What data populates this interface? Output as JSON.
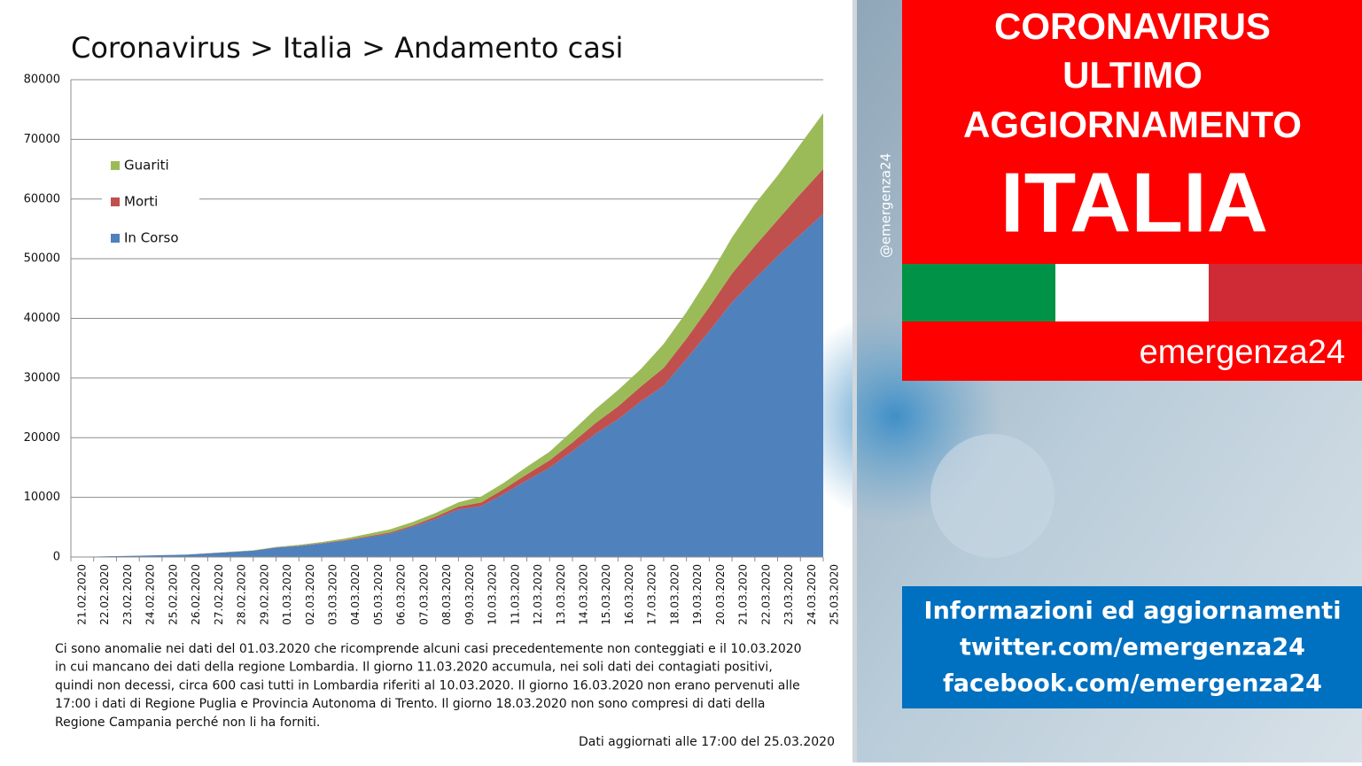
{
  "chart_data": {
    "type": "area",
    "stacked": true,
    "title": "Coronavirus > Italia > Andamento casi",
    "categories": [
      "21.02.2020",
      "22.02.2020",
      "23.02.2020",
      "24.02.2020",
      "25.02.2020",
      "26.02.2020",
      "27.02.2020",
      "28.02.2020",
      "29.02.2020",
      "01.03.2020",
      "02.03.2020",
      "03.03.2020",
      "04.03.2020",
      "05.03.2020",
      "06.03.2020",
      "07.03.2020",
      "08.03.2020",
      "09.03.2020",
      "10.03.2020",
      "11.03.2020",
      "12.03.2020",
      "13.03.2020",
      "14.03.2020",
      "15.03.2020",
      "16.03.2020",
      "17.03.2020",
      "18.03.2020",
      "19.03.2020",
      "20.03.2020",
      "21.03.2020",
      "22.03.2020",
      "23.03.2020",
      "24.03.2020",
      "25.03.2020"
    ],
    "series": [
      {
        "name": "In Corso",
        "color": "#4f81bd",
        "values": [
          20,
          79,
          150,
          221,
          311,
          385,
          588,
          821,
          1049,
          1577,
          1835,
          2263,
          2706,
          3296,
          3916,
          5061,
          6387,
          7985,
          8514,
          10590,
          12839,
          14955,
          17750,
          20603,
          23073,
          26062,
          28710,
          33190,
          37860,
          42681,
          46638,
          50418,
          54030,
          57521
        ]
      },
      {
        "name": "Morti",
        "color": "#c0504d",
        "values": [
          1,
          2,
          3,
          7,
          10,
          12,
          17,
          21,
          29,
          34,
          52,
          79,
          107,
          148,
          197,
          233,
          366,
          463,
          631,
          827,
          1016,
          1266,
          1441,
          1809,
          2158,
          2503,
          2978,
          3405,
          4032,
          4825,
          5476,
          6077,
          6820,
          7503
        ]
      },
      {
        "name": "Guariti",
        "color": "#9bbb59",
        "values": [
          0,
          0,
          0,
          1,
          1,
          3,
          45,
          46,
          50,
          83,
          149,
          160,
          276,
          414,
          523,
          589,
          622,
          724,
          1004,
          1045,
          1258,
          1439,
          1966,
          2335,
          2749,
          2941,
          4025,
          4440,
          5129,
          6072,
          7024,
          7432,
          8326,
          9362
        ]
      }
    ],
    "ylim": [
      0,
      80000
    ],
    "yticks": [
      0,
      10000,
      20000,
      30000,
      40000,
      50000,
      60000,
      70000,
      80000
    ],
    "grid": true,
    "legend": "upper-left"
  },
  "note": {
    "lines": [
      "Ci sono anomalie nei dati del 01.03.2020 che ricomprende alcuni casi precedentemente  non conteggiati e il 10.03.2020",
      "in cui mancano dei dati della regione Lombardia. Il giorno 11.03.2020  accumula, nei soli dati dei contagiati positivi,",
      "quindi non decessi, circa 600 casi tutti in Lombardia riferiti al 10.03.2020. Il giorno 16.03.2020 non erano pervenuti alle",
      "17:00 i dati di Regione Puglia e  Provincia Autonoma di Trento. Il giorno 18.03.2020 non sono compresi di dati della",
      "Regione Campania  perché non li ha forniti."
    ],
    "updated": "Dati aggiornati alle  17:00 del 25.03.2020"
  },
  "banner": {
    "lines": [
      "CORONAVIRUS",
      "ULTIMO",
      "AGGIORNAMENTO"
    ],
    "country": "ITALIA",
    "brand": "emergenza24",
    "handle": "@emergenza24"
  },
  "info": {
    "lines": [
      "Informazioni ed aggiornamenti",
      "twitter.com/emergenza24",
      "facebook.com/emergenza24"
    ]
  }
}
